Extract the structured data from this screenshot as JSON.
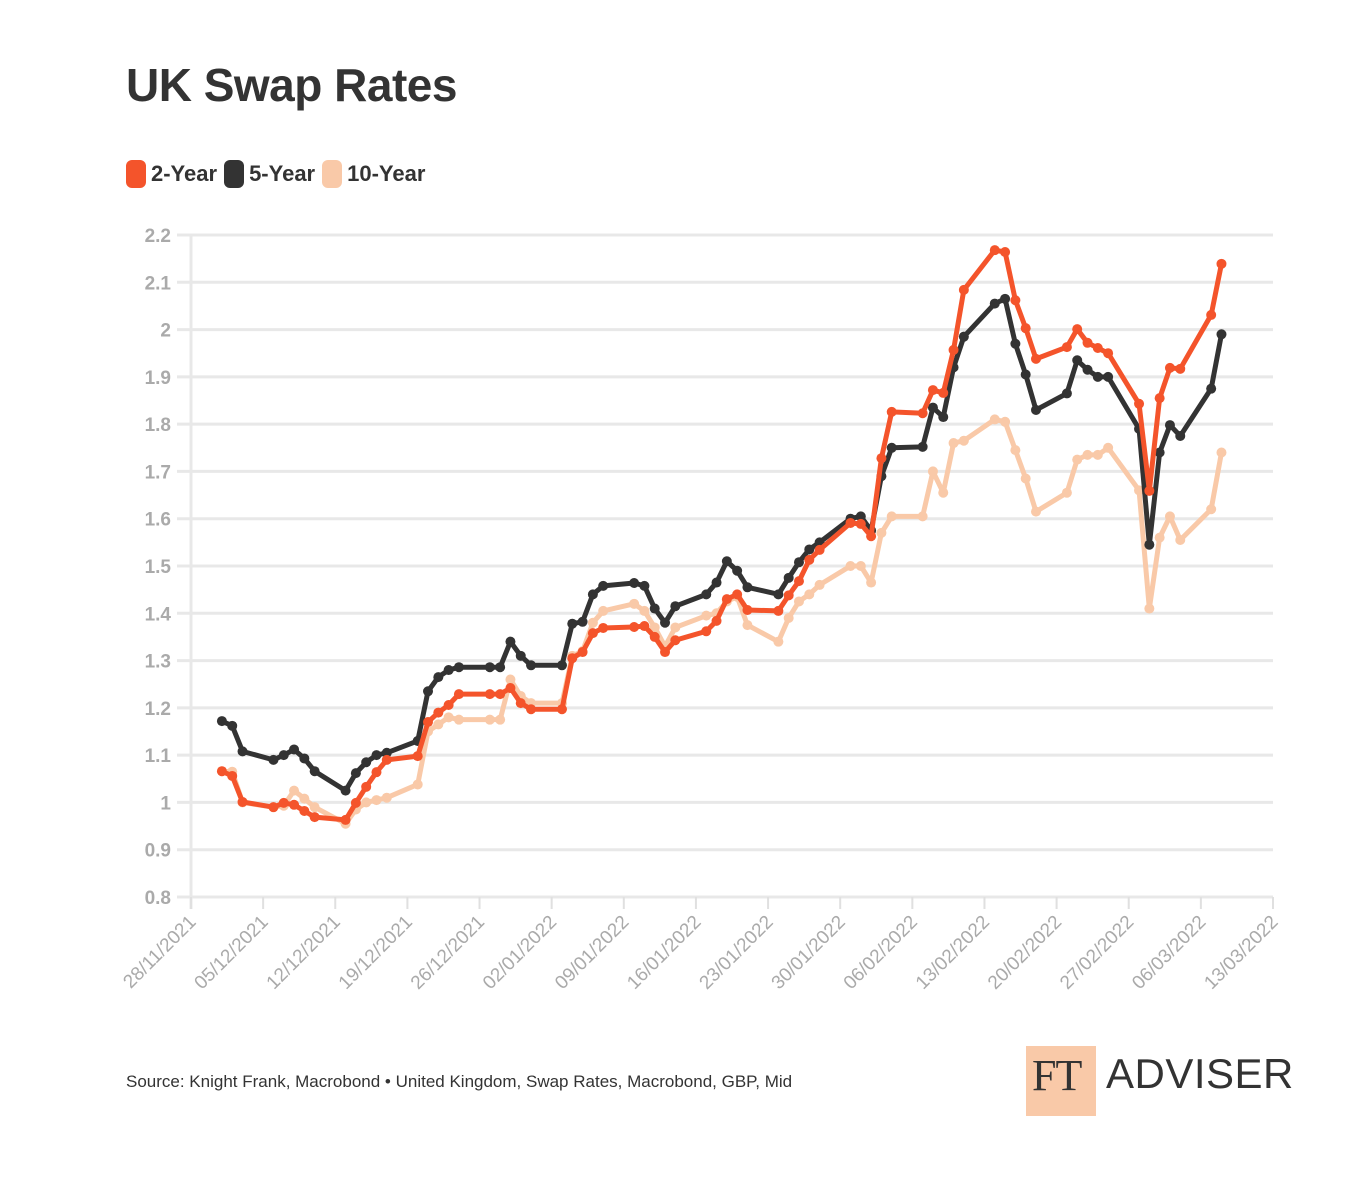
{
  "header": {
    "title": "UK Swap Rates"
  },
  "footer": {
    "source": "Source: Knight Frank, Macrobond • United Kingdom, Swap Rates, Macrobond, GBP, Mid",
    "logo_mark": "FT",
    "logo_text": "ADVISER"
  },
  "chart_data": {
    "type": "line",
    "title": "UK Swap Rates",
    "xlabel": "",
    "ylabel": "",
    "ylim": [
      0.8,
      2.2
    ],
    "yticks": [
      "0.8",
      "0.9",
      "1",
      "1.1",
      "1.2",
      "1.3",
      "1.4",
      "1.5",
      "1.6",
      "1.7",
      "1.8",
      "1.9",
      "2",
      "2.1",
      "2.2"
    ],
    "xlim": [
      "2021-11-28",
      "2022-03-13"
    ],
    "xticks": [
      "28/11/2021",
      "05/12/2021",
      "12/12/2021",
      "19/12/2021",
      "26/12/2021",
      "02/01/2022",
      "09/01/2022",
      "16/01/2022",
      "23/01/2022",
      "30/01/2022",
      "06/02/2022",
      "13/02/2022",
      "20/02/2022",
      "27/02/2022",
      "06/03/2022",
      "13/03/2022"
    ],
    "grid": "horizontal",
    "legend_position": "top-left",
    "x": [
      "2021-12-01",
      "2021-12-02",
      "2021-12-03",
      "2021-12-06",
      "2021-12-07",
      "2021-12-08",
      "2021-12-09",
      "2021-12-10",
      "2021-12-13",
      "2021-12-14",
      "2021-12-15",
      "2021-12-16",
      "2021-12-17",
      "2021-12-20",
      "2021-12-21",
      "2021-12-22",
      "2021-12-23",
      "2021-12-24",
      "2021-12-27",
      "2021-12-28",
      "2021-12-29",
      "2021-12-30",
      "2021-12-31",
      "2022-01-03",
      "2022-01-04",
      "2022-01-05",
      "2022-01-06",
      "2022-01-07",
      "2022-01-10",
      "2022-01-11",
      "2022-01-12",
      "2022-01-13",
      "2022-01-14",
      "2022-01-17",
      "2022-01-18",
      "2022-01-19",
      "2022-01-20",
      "2022-01-21",
      "2022-01-24",
      "2022-01-25",
      "2022-01-26",
      "2022-01-27",
      "2022-01-28",
      "2022-01-31",
      "2022-02-01",
      "2022-02-02",
      "2022-02-03",
      "2022-02-04",
      "2022-02-07",
      "2022-02-08",
      "2022-02-09",
      "2022-02-10",
      "2022-02-11",
      "2022-02-14",
      "2022-02-15",
      "2022-02-16",
      "2022-02-17",
      "2022-02-18",
      "2022-02-21",
      "2022-02-22",
      "2022-02-23",
      "2022-02-24",
      "2022-02-25",
      "2022-02-28",
      "2022-03-01",
      "2022-03-02",
      "2022-03-03",
      "2022-03-04",
      "2022-03-07",
      "2022-03-08"
    ],
    "series": [
      {
        "name": "2-Year",
        "color": "#f4542b",
        "values": [
          1.066,
          1.056,
          1.001,
          0.99,
          0.999,
          0.995,
          0.982,
          0.969,
          0.963,
          0.999,
          1.033,
          1.064,
          1.09,
          1.098,
          1.17,
          1.19,
          1.206,
          1.229,
          1.229,
          1.229,
          1.242,
          1.21,
          1.197,
          1.197,
          1.305,
          1.318,
          1.358,
          1.369,
          1.371,
          1.373,
          1.35,
          1.318,
          1.343,
          1.362,
          1.384,
          1.43,
          1.44,
          1.407,
          1.405,
          1.438,
          1.468,
          1.513,
          1.534,
          1.591,
          1.589,
          1.563,
          1.728,
          1.826,
          1.823,
          1.872,
          1.866,
          1.957,
          2.084,
          2.168,
          2.164,
          2.062,
          2.003,
          1.938,
          1.963,
          2.001,
          1.972,
          1.961,
          1.95,
          1.843,
          1.659,
          1.855,
          1.919,
          1.917,
          2.031,
          2.139
        ]
      },
      {
        "name": "5-Year",
        "color": "#333333",
        "values": [
          1.172,
          1.162,
          1.108,
          1.09,
          1.1,
          1.112,
          1.093,
          1.066,
          1.025,
          1.062,
          1.085,
          1.1,
          1.105,
          1.13,
          1.235,
          1.265,
          1.28,
          1.286,
          1.286,
          1.286,
          1.34,
          1.31,
          1.29,
          1.29,
          1.378,
          1.382,
          1.44,
          1.458,
          1.464,
          1.458,
          1.41,
          1.38,
          1.415,
          1.44,
          1.465,
          1.51,
          1.49,
          1.455,
          1.44,
          1.475,
          1.508,
          1.535,
          1.55,
          1.6,
          1.605,
          1.575,
          1.69,
          1.75,
          1.752,
          1.835,
          1.815,
          1.92,
          1.985,
          2.055,
          2.065,
          1.97,
          1.905,
          1.83,
          1.865,
          1.935,
          1.915,
          1.9,
          1.9,
          1.79,
          1.545,
          1.74,
          1.798,
          1.775,
          1.875,
          1.99
        ]
      },
      {
        "name": "10-Year",
        "color": "#f9c9a8",
        "values": [
          1.066,
          1.065,
          1.0,
          0.99,
          0.993,
          1.025,
          1.008,
          0.99,
          0.955,
          0.985,
          1.0,
          1.005,
          1.01,
          1.038,
          1.15,
          1.165,
          1.18,
          1.175,
          1.175,
          1.175,
          1.26,
          1.225,
          1.21,
          1.21,
          1.31,
          1.32,
          1.38,
          1.405,
          1.42,
          1.405,
          1.37,
          1.33,
          1.37,
          1.395,
          1.4,
          1.425,
          1.435,
          1.375,
          1.34,
          1.39,
          1.425,
          1.44,
          1.46,
          1.5,
          1.5,
          1.465,
          1.57,
          1.605,
          1.605,
          1.7,
          1.655,
          1.76,
          1.765,
          1.81,
          1.805,
          1.745,
          1.685,
          1.615,
          1.655,
          1.725,
          1.735,
          1.735,
          1.75,
          1.66,
          1.41,
          1.56,
          1.605,
          1.555,
          1.62,
          1.74
        ]
      }
    ]
  }
}
